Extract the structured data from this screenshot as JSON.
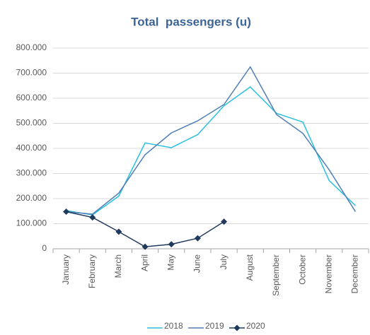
{
  "chart_data": {
    "type": "line",
    "title": "Total  passengers (u)",
    "categories": [
      "January",
      "February",
      "March",
      "April",
      "May",
      "June",
      "July",
      "August",
      "September",
      "October",
      "November",
      "December"
    ],
    "series": [
      {
        "name": "2018",
        "color": "#2bbfe0",
        "values": [
          152000,
          135000,
          210000,
          422000,
          403000,
          455000,
          570000,
          645000,
          540000,
          505000,
          272000,
          172000
        ]
      },
      {
        "name": "2019",
        "color": "#4f7fb5",
        "values": [
          148000,
          138000,
          222000,
          375000,
          462000,
          510000,
          575000,
          725000,
          535000,
          460000,
          315000,
          148000
        ]
      },
      {
        "name": "2020",
        "color": "#1f3a5c",
        "marker": "diamond",
        "values": [
          148000,
          125000,
          68000,
          8000,
          18000,
          42000,
          108000,
          null,
          null,
          null,
          null,
          null
        ]
      }
    ],
    "ylim": [
      0,
      800000
    ],
    "yticks": [
      0,
      {
        "value": 100000,
        "label": "100.000"
      },
      {
        "value": 200000,
        "label": "200.000"
      },
      {
        "value": 300000,
        "label": "300.000"
      },
      {
        "value": 400000,
        "label": "400.000"
      },
      {
        "value": 500000,
        "label": "500.000"
      },
      {
        "value": 600000,
        "label": "600.000"
      },
      {
        "value": 700000,
        "label": "700.000"
      },
      {
        "value": 800000,
        "label": "800.000"
      }
    ],
    "grid": true,
    "legend": "bottom"
  }
}
